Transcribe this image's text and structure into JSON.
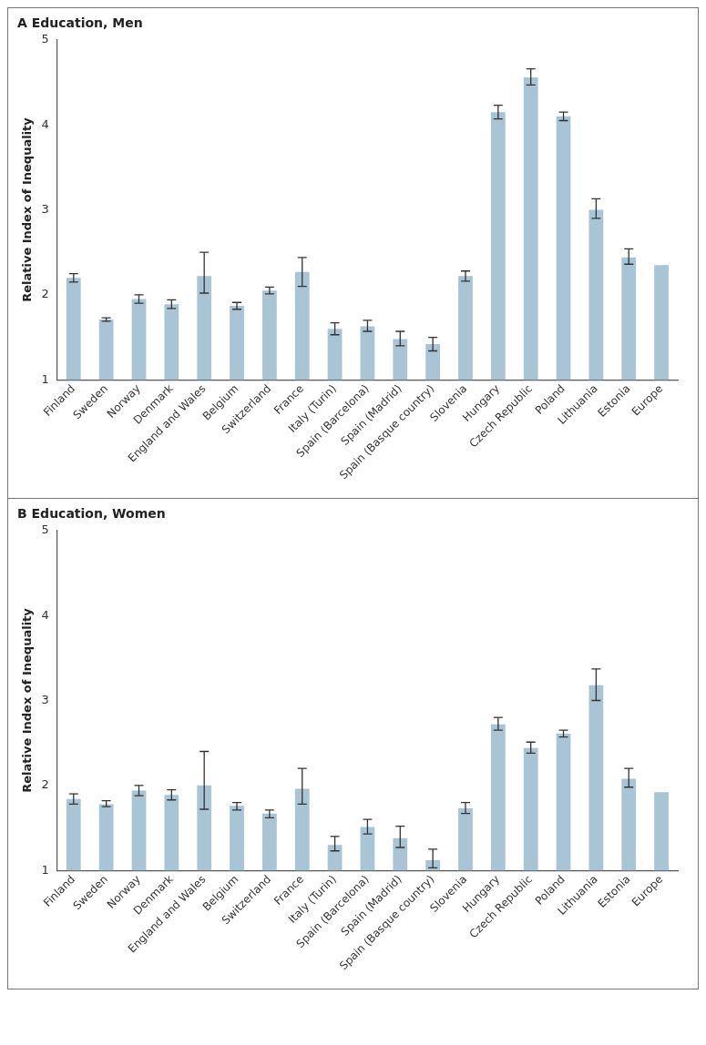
{
  "chart_data": [
    {
      "type": "bar",
      "title": "A Education, Men",
      "ylabel": "Relative Index of Inequality",
      "categories": [
        "Finland",
        "Sweden",
        "Norway",
        "Denmark",
        "England and Wales",
        "Belgium",
        "Switzerland",
        "France",
        "Italy (Turin)",
        "Spain (Barcelona)",
        "Spain (Madrid)",
        "Spain (Basque country)",
        "Slovenia",
        "Hungary",
        "Czech Republic",
        "Poland",
        "Lithuania",
        "Estonia",
        "Europe"
      ],
      "values": [
        2.2,
        1.71,
        1.95,
        1.89,
        2.22,
        1.87,
        2.05,
        2.27,
        1.6,
        1.63,
        1.48,
        1.42,
        2.22,
        4.15,
        4.56,
        4.1,
        3.0,
        2.44,
        2.35
      ],
      "errors": [
        [
          2.15,
          2.25
        ],
        [
          1.69,
          1.73
        ],
        [
          1.9,
          2.0
        ],
        [
          1.84,
          1.94
        ],
        [
          2.02,
          2.5
        ],
        [
          1.83,
          1.91
        ],
        [
          2.01,
          2.09
        ],
        [
          2.1,
          2.44
        ],
        [
          1.53,
          1.67
        ],
        [
          1.57,
          1.7
        ],
        [
          1.4,
          1.57
        ],
        [
          1.34,
          1.5
        ],
        [
          2.16,
          2.28
        ],
        [
          4.07,
          4.23
        ],
        [
          4.47,
          4.66
        ],
        [
          4.05,
          4.15
        ],
        [
          2.9,
          3.13
        ],
        [
          2.36,
          2.54
        ],
        null
      ],
      "color": "#a9c4d4",
      "ylim": [
        1,
        5
      ],
      "yticks": [
        1,
        2,
        3,
        4,
        5
      ]
    },
    {
      "type": "bar",
      "title": "B Education, Women",
      "ylabel": "Relative Index of Inequality",
      "categories": [
        "Finland",
        "Sweden",
        "Norway",
        "Denmark",
        "England and Wales",
        "Belgium",
        "Switzerland",
        "France",
        "Italy (Turin)",
        "Spain (Barcelona)",
        "Spain (Madrid)",
        "Spain (Basque country)",
        "Slovenia",
        "Hungary",
        "Czech Republic",
        "Poland",
        "Lithuania",
        "Estonia",
        "Europe"
      ],
      "values": [
        1.84,
        1.78,
        1.94,
        1.89,
        2.0,
        1.76,
        1.67,
        1.96,
        1.3,
        1.51,
        1.38,
        1.12,
        1.73,
        2.72,
        2.44,
        2.61,
        3.18,
        2.08,
        1.92
      ],
      "errors": [
        [
          1.78,
          1.9
        ],
        [
          1.75,
          1.82
        ],
        [
          1.88,
          2.0
        ],
        [
          1.83,
          1.95
        ],
        [
          1.72,
          2.4
        ],
        [
          1.71,
          1.8
        ],
        [
          1.62,
          1.71
        ],
        [
          1.78,
          2.2
        ],
        [
          1.23,
          1.4
        ],
        [
          1.43,
          1.6
        ],
        [
          1.27,
          1.52
        ],
        [
          1.03,
          1.25
        ],
        [
          1.67,
          1.8
        ],
        [
          2.65,
          2.8
        ],
        [
          2.38,
          2.51
        ],
        [
          2.57,
          2.65
        ],
        [
          3.0,
          3.37
        ],
        [
          1.98,
          2.2
        ],
        null
      ],
      "color": "#a9c4d4",
      "ylim": [
        1,
        5
      ],
      "yticks": [
        1,
        2,
        3,
        4,
        5
      ]
    }
  ]
}
